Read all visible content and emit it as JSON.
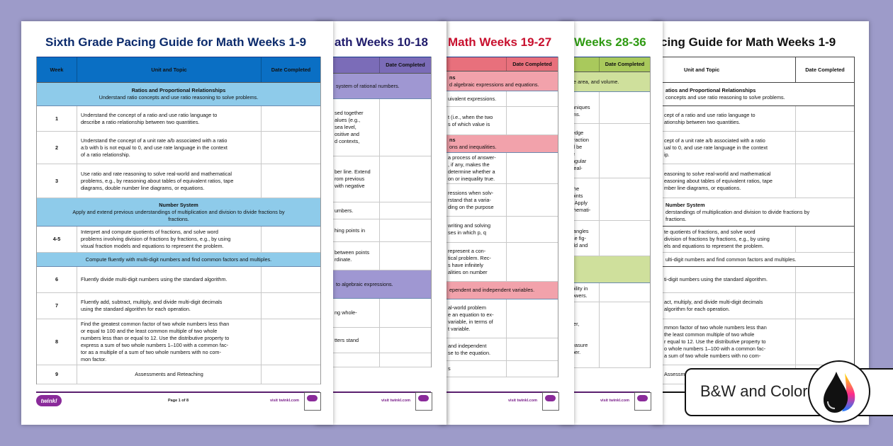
{
  "pages": [
    {
      "title": "Sixth Grade Pacing Guide for Math Weeks 1-9",
      "title_color": "#0b2a6b",
      "header_bg": "#0a6fc4",
      "section_bg": "#8ecbea",
      "header": [
        "Week",
        "Unit and Topic",
        "Date Completed"
      ],
      "rows": [
        {
          "type": "section",
          "heading": "Ratios and Proportional Relationships",
          "text": "Understand ratio concepts and use ratio reasoning to solve problems."
        },
        {
          "type": "row",
          "week": "1",
          "text": "Understand the concept of a ratio and use ratio language to\ndescribe a ratio relationship between two quantities."
        },
        {
          "type": "row",
          "week": "2",
          "text": "Understand the concept of a unit rate a/b associated with a ratio\na:b with b is not equal to 0, and use rate language in the context\nof a ratio relationship."
        },
        {
          "type": "row",
          "week": "3",
          "text": "Use ratio and rate reasoning to solve real-world and mathematical\nproblems, e.g., by reasoning about tables of equivalent ratios, tape\ndiagrams, double number line diagrams, or equations."
        },
        {
          "type": "section",
          "heading": "Number System",
          "text": "Apply and extend previous understandings of multiplication and division to divide fractions by\nfractions."
        },
        {
          "type": "row",
          "week": "4-5",
          "text": "Interpret and compute quotients of fractions, and solve word\nproblems involving division of fractions by fractions, e.g., by using\nvisual fraction models and equations to represent the problem."
        },
        {
          "type": "section",
          "heading": "",
          "text": "Compute fluently with multi-digit numbers and find common factors and multiples."
        },
        {
          "type": "row",
          "week": "6",
          "text": "Fluently divide multi-digit numbers using the standard algorithm."
        },
        {
          "type": "row",
          "week": "7",
          "text": "Fluently add, subtract, multiply, and divide multi-digit decimals\nusing the standard algorithm for each operation."
        },
        {
          "type": "row",
          "week": "8",
          "text": "Find the greatest common factor of two whole numbers less than\nor equal to 100 and the least common multiple of two whole\nnumbers less than or equal to 12. Use the distributive property to\nexpress a sum of two whole numbers 1–100 with a common fac-\ntor as a multiple of a sum of two whole numbers with no com-\nmon factor."
        },
        {
          "type": "row",
          "week": "9",
          "text": "Assessments and Reteaching",
          "centered": true
        }
      ],
      "footer": {
        "logo": "twinkl",
        "page": "Page 1 of 8",
        "site": "visit twinkl.com"
      }
    },
    {
      "title": "ath Weeks 10-18",
      "title_color": "#1f1b6b",
      "header_bg": "#7b6cb8",
      "section_bg": "#9f97d2",
      "header": [
        "",
        "Date Completed"
      ],
      "rows": [
        {
          "type": "section",
          "heading": "",
          "text": "system of rational numbers."
        },
        {
          "type": "row",
          "text": "sed together\nalues (e.g.,\n sea level,\nositive and\nd contexts,"
        },
        {
          "type": "row",
          "text": "ber line. Extend\nrom previous\n with negative"
        },
        {
          "type": "row",
          "text": "umbers."
        },
        {
          "type": "row",
          "text": "hing points in"
        },
        {
          "type": "row",
          "text": "between points\nrdinate."
        },
        {
          "type": "section",
          "heading": "",
          "text": "to algebraic expressions."
        },
        {
          "type": "row",
          "text": "ng whole-"
        },
        {
          "type": "row",
          "text": "tters stand"
        },
        {
          "type": "row",
          "text": ""
        }
      ],
      "footer": {
        "site": "visit twinkl.com"
      }
    },
    {
      "title": "Math Weeks 19-27",
      "title_color": "#c8102e",
      "header_bg": "#e8707c",
      "section_bg": "#f2a2ab",
      "header": [
        "",
        "Date Completed"
      ],
      "rows": [
        {
          "type": "section",
          "heading": "ns",
          "text": "d algebraic expressions and equations."
        },
        {
          "type": "row",
          "text": "uivalent expressions."
        },
        {
          "type": "row",
          "text": "t (i.e., when the two\ns of which value is"
        },
        {
          "type": "section",
          "heading": "ns",
          "text": "ons and inequalities."
        },
        {
          "type": "row",
          "text": "a process of answer-\n, if any, makes the\ndetermine whether a\non or inequality true."
        },
        {
          "type": "row",
          "text": "ressions when solv-\nrstand that a varia-\nding on the purpose"
        },
        {
          "type": "row",
          "text": "writing and solving\nses in which p, q"
        },
        {
          "type": "row",
          "text": "represent a con-\ntical problem. Rec-\ns have infinitely\nalities on number"
        },
        {
          "type": "section",
          "heading": "",
          "text": "ependent and independent variables."
        },
        {
          "type": "row",
          "text": "al-world problem\ne an equation to ex-\n variable, in terms of\nt variable."
        },
        {
          "type": "row",
          "text": "and independent\nse to the equation."
        },
        {
          "type": "row",
          "text": "s"
        }
      ],
      "footer": {
        "site": "visit twinkl.com"
      }
    },
    {
      "title": "Weeks 28-36",
      "title_color": "#2e9a12",
      "header_bg": "#a9c95c",
      "section_bg": "#cfe09c",
      "header": [
        "",
        "Date Completed"
      ],
      "rows": [
        {
          "type": "section",
          "heading": "",
          "text": "e area, and volume."
        },
        {
          "type": "row",
          "text": "\nhniques\nms."
        },
        {
          "type": "row",
          "text": "edge\n fraction\nd be\ne\nngular\nreal-"
        },
        {
          "type": "row",
          "text": "the\noints\n. Apply\nthemati-"
        },
        {
          "type": "row",
          "text": "tangles\nse fig-\nrld and"
        },
        {
          "type": "section",
          "heading": "",
          "text": ""
        },
        {
          "type": "row",
          "text": "bility in\nowers."
        },
        {
          "type": "row",
          "text": "l\nter,\n\n\neasure\nber."
        }
      ],
      "footer": {
        "site": "visit twinkl.com"
      }
    },
    {
      "title": "cing Guide for Math Weeks 1-9",
      "title_color": "#111111",
      "header_bg": "#ffffff",
      "section_bg": "#ffffff",
      "header": [
        "Unit and Topic",
        "Date Completed"
      ],
      "rows": [
        {
          "type": "section",
          "heading": "atios and Proportional Relationships",
          "text": " concepts and use ratio reasoning to solve problems."
        },
        {
          "type": "row",
          "text": "cept of a ratio and use ratio language to\nationship between two quantities."
        },
        {
          "type": "row",
          "text": "cept of a unit rate a/b associated with a ratio\nual to 0, and use rate language in the context\nip."
        },
        {
          "type": "row",
          "text": "easoning to solve real-world and mathematical\neasoning about tables of equivalent ratios, tape\nmber line diagrams, or equations."
        },
        {
          "type": "section",
          "heading": "Number System",
          "text": "derstandings of multiplication and division to divide fractions by\nfractions."
        },
        {
          "type": "row",
          "text": "te quotients of fractions, and solve word\ndivision of fractions by fractions, e.g., by using\nels and equations to represent the problem."
        },
        {
          "type": "section",
          "heading": "",
          "text": "ulti-digit numbers and find common factors and multiples."
        },
        {
          "type": "row",
          "text": "ti-digit numbers using the standard algorithm."
        },
        {
          "type": "row",
          "text": "act, multiply, and divide multi-digit decimals\nalgorithm for each operation."
        },
        {
          "type": "row",
          "text": "mmon factor of two whole numbers less than\n the least common multiple of two whole\nr equal to 12. Use the distributive property to\no whole numbers 1–100 with a common fac-\na sum of two whole numbers with no com-"
        },
        {
          "type": "row",
          "text": "Assessm"
        }
      ],
      "footer": {}
    }
  ],
  "badge": {
    "label": "B&W and Color",
    "icon": "ink-drops-icon"
  }
}
